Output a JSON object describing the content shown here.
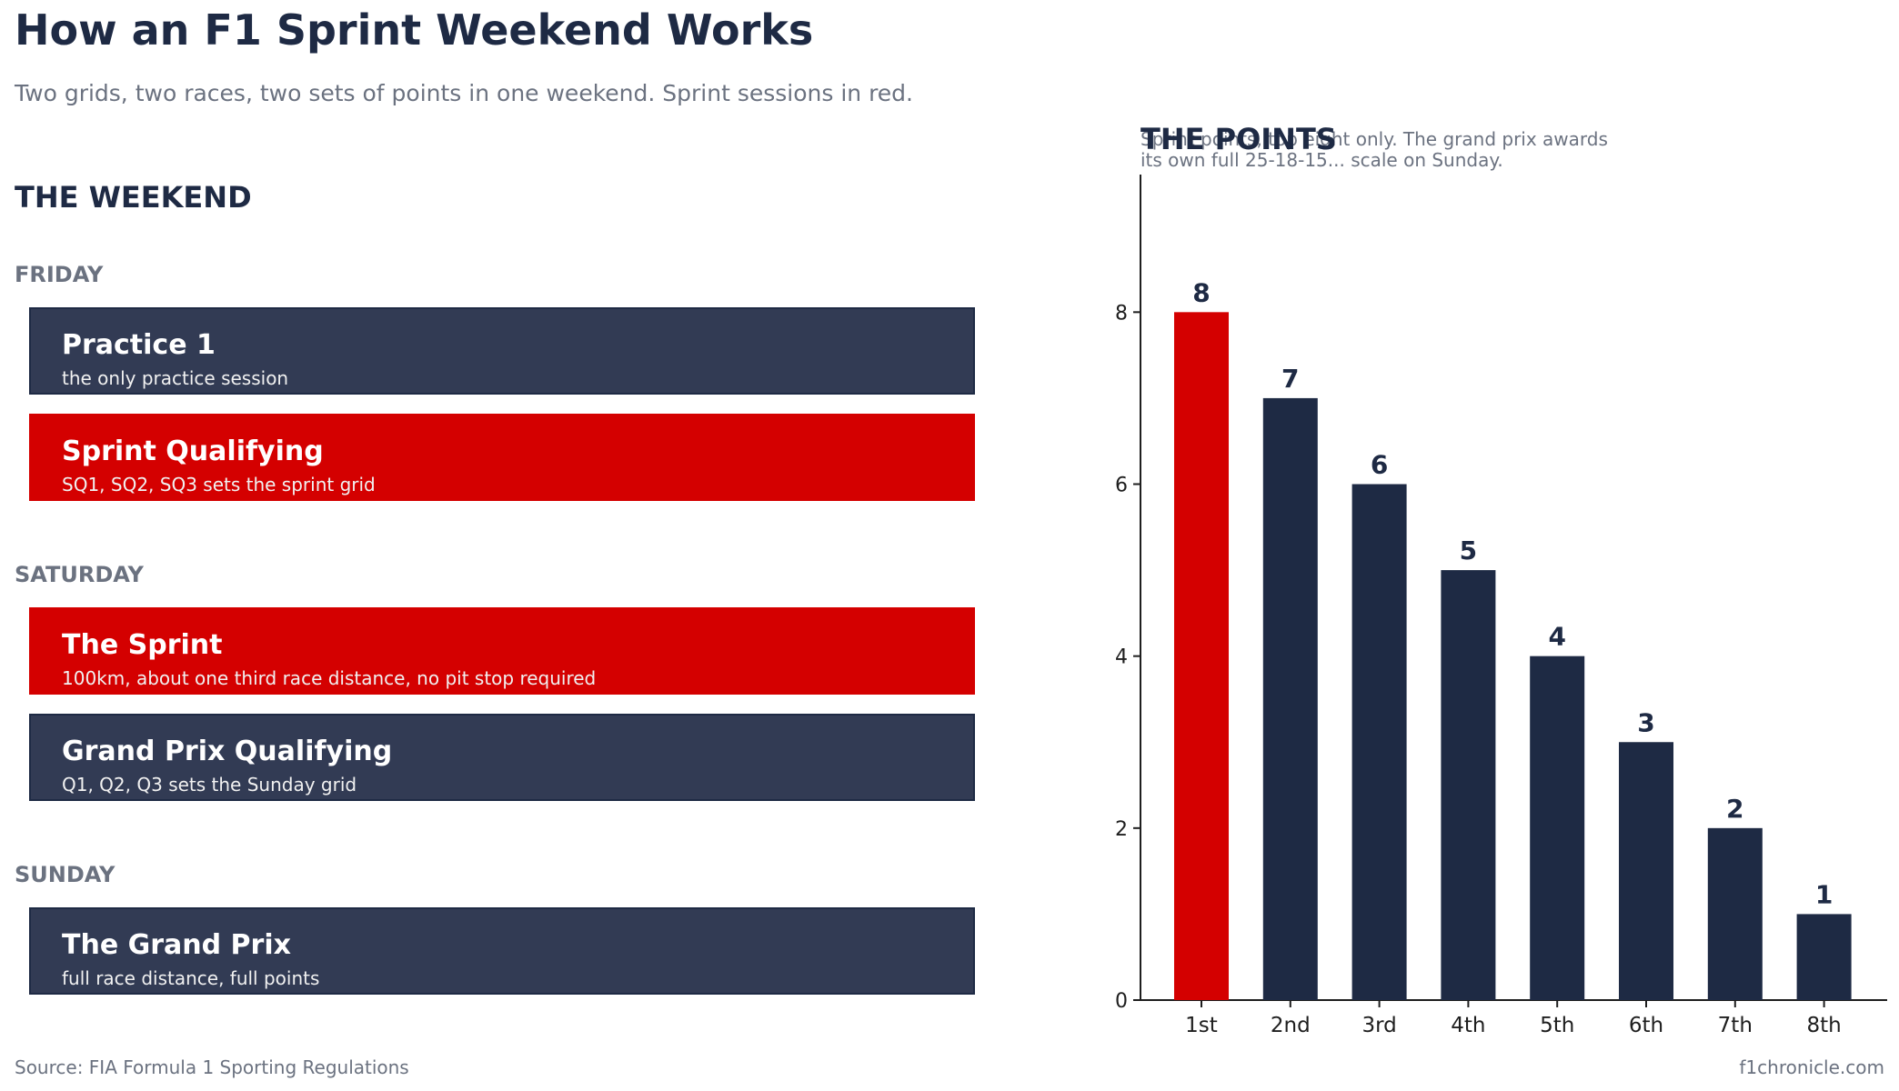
{
  "header": {
    "title": "How an F1 Sprint Weekend Works",
    "subtitle": "Two grids, two races, two sets of points in one weekend. Sprint sessions in red."
  },
  "weekend": {
    "heading": "THE WEEKEND",
    "days": [
      {
        "label": "FRIDAY",
        "sessions": [
          {
            "name": "Practice 1",
            "desc": "the only practice session",
            "kind": "regular"
          },
          {
            "name": "Sprint Qualifying",
            "desc": "SQ1, SQ2, SQ3 sets the sprint grid",
            "kind": "sprint"
          }
        ]
      },
      {
        "label": "SATURDAY",
        "sessions": [
          {
            "name": "The Sprint",
            "desc": "100km, about one third race distance, no pit stop required",
            "kind": "sprint"
          },
          {
            "name": "Grand Prix Qualifying",
            "desc": "Q1, Q2, Q3 sets the Sunday grid",
            "kind": "regular"
          }
        ]
      },
      {
        "label": "SUNDAY",
        "sessions": [
          {
            "name": "The Grand Prix",
            "desc": "full race distance, full points",
            "kind": "regular"
          }
        ]
      }
    ]
  },
  "points": {
    "heading": "THE POINTS",
    "note": "Sprint points, top eight only. The grand prix awards its own full 25-18-15... scale on Sunday."
  },
  "chart_data": {
    "type": "bar",
    "categories": [
      "1st",
      "2nd",
      "3rd",
      "4th",
      "5th",
      "6th",
      "7th",
      "8th"
    ],
    "values": [
      8,
      7,
      6,
      5,
      4,
      3,
      2,
      1
    ],
    "ylim": [
      0,
      9.6
    ],
    "yticks": [
      0,
      2,
      4,
      6,
      8
    ],
    "grid": false,
    "colors": {
      "highlight": "#d40000",
      "default": "#1e2a44"
    },
    "highlight_index": 0
  },
  "footer": {
    "source": "Source: FIA Formula 1 Sporting Regulations",
    "credit": "f1chronicle.com"
  }
}
